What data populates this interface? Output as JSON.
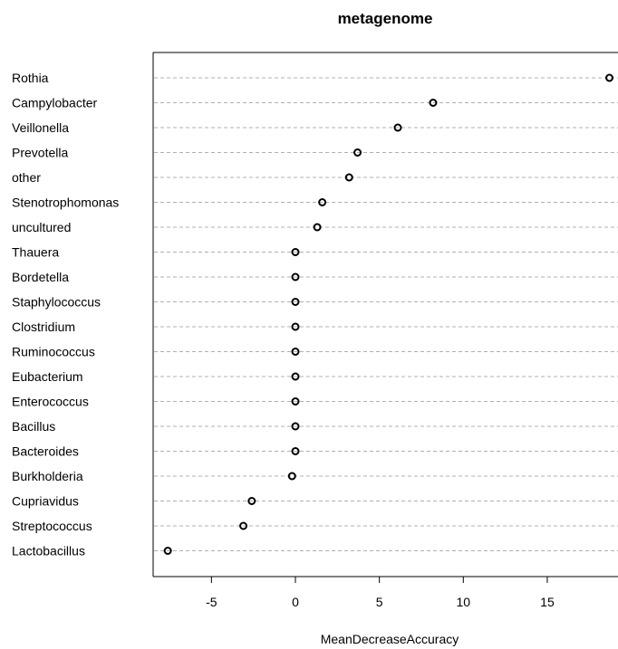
{
  "chart_data": {
    "type": "scatter",
    "title": "metagenome",
    "xlabel": "MeanDecreaseAccuracy",
    "ylabel": "",
    "xlim": [
      -8.6,
      19.2
    ],
    "x_ticks": [
      "-5",
      "0",
      "5",
      "10",
      "15"
    ],
    "x_tick_values": [
      -5,
      0,
      5,
      10,
      15
    ],
    "grid": "horizontal dashed lines per category",
    "categories": [
      "Rothia",
      "Campylobacter",
      "Veillonella",
      "Prevotella",
      "other",
      "Stenotrophomonas",
      "uncultured",
      "Thauera",
      "Bordetella",
      "Staphylococcus",
      "Clostridium",
      "Ruminococcus",
      "Eubacterium",
      "Enterococcus",
      "Bacillus",
      "Bacteroides",
      "Burkholderia",
      "Cupriavidus",
      "Streptococcus",
      "Lactobacillus"
    ],
    "values": [
      18.7,
      8.2,
      6.1,
      3.7,
      3.2,
      1.6,
      1.3,
      0.0,
      0.0,
      0.0,
      0.0,
      0.0,
      0.0,
      0.0,
      0.0,
      0.0,
      -0.2,
      -2.6,
      -3.1,
      -7.6
    ]
  },
  "colors": {
    "point": "#000000",
    "grid": "#b0b0b0",
    "axis": "#000000"
  }
}
